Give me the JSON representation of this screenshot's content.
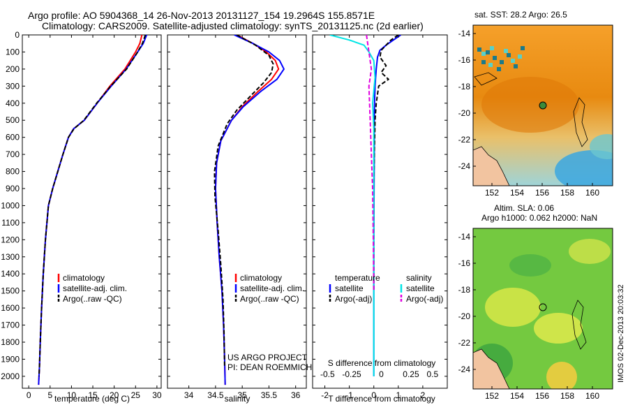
{
  "header": {
    "line1": "Argo profile: AO 5904368_14 26-Nov-2013 20131127_154 19.2964S 155.8571E",
    "line2": "Climatology: CARS2009. Satellite-adjusted climatology: synTS_20131125.nc (2d earlier)"
  },
  "colors": {
    "climatology": "#ff0000",
    "satellite": "#0000ff",
    "argo": "#000000",
    "sat_salinity": "#00e5e5",
    "argo_salinity": "#e000e0"
  },
  "depth_axis": {
    "ticks": [
      "0",
      "100",
      "200",
      "300",
      "400",
      "500",
      "600",
      "700",
      "800",
      "900",
      "1000",
      "1100",
      "1200",
      "1300",
      "1400",
      "1500",
      "1600",
      "1700",
      "1800",
      "1900",
      "2000"
    ],
    "ylim": [
      0,
      2070
    ]
  },
  "chart_data": [
    {
      "type": "line",
      "xlabel": "temperature (deg C)",
      "xlim": [
        -1.5,
        31
      ],
      "xticks": [
        "0",
        "5",
        "10",
        "15",
        "20",
        "25",
        "30"
      ],
      "legend": [
        "climatology",
        "satellite-adj. clim.",
        "Argo(..raw -QC)"
      ],
      "series": [
        {
          "name": "climatology",
          "x": [
            26.5,
            26.0,
            25.0,
            22.5,
            19.0,
            16.0,
            13.0,
            10.5,
            9.3,
            8.0,
            6.8,
            5.6,
            4.6,
            3.9,
            3.4,
            3.0,
            2.7,
            2.5,
            2.4,
            2.3
          ],
          "y": [
            0,
            50,
            100,
            200,
            300,
            400,
            500,
            550,
            600,
            700,
            800,
            900,
            1000,
            1200,
            1400,
            1600,
            1800,
            1950,
            2000,
            2050
          ]
        },
        {
          "name": "satellite-adj. clim.",
          "x": [
            27.6,
            26.8,
            25.5,
            22.8,
            19.3,
            16.0,
            13.0,
            10.5,
            9.3,
            8.0,
            6.8,
            5.6,
            4.6,
            3.9,
            3.4,
            3.0,
            2.7,
            2.5,
            2.4,
            2.3
          ],
          "y": [
            0,
            50,
            100,
            200,
            300,
            400,
            500,
            550,
            600,
            700,
            800,
            900,
            1000,
            1200,
            1400,
            1600,
            1800,
            1950,
            2000,
            2050
          ]
        },
        {
          "name": "Argo(..raw -QC)",
          "x": [
            27.3,
            26.6,
            25.5,
            22.9,
            19.2,
            15.9,
            12.9,
            10.6,
            9.3,
            8.0,
            6.8,
            5.6,
            4.6,
            3.9,
            3.4,
            3.0,
            2.7,
            2.5,
            2.4
          ],
          "y": [
            0,
            50,
            100,
            200,
            300,
            400,
            500,
            550,
            600,
            700,
            800,
            900,
            1000,
            1200,
            1400,
            1600,
            1800,
            1950,
            2000
          ]
        }
      ]
    },
    {
      "type": "line",
      "xlabel": "salinity",
      "xlim": [
        33.6,
        36.2
      ],
      "xticks": [
        "34",
        "34.5",
        "35",
        "35.5",
        "36"
      ],
      "legend": [
        "climatology",
        "satellite-adj. clim.",
        "Argo(..raw -QC)"
      ],
      "annotation": [
        "US ARGO PROJECT",
        "PI: DEAN ROEMMICH"
      ],
      "series": [
        {
          "name": "climatology",
          "x": [
            34.9,
            35.2,
            35.45,
            35.62,
            35.68,
            35.55,
            35.3,
            35.0,
            34.8,
            34.6,
            34.52,
            34.5,
            34.53,
            34.57,
            34.62,
            34.65,
            34.67,
            34.68
          ],
          "y": [
            0,
            50,
            100,
            150,
            200,
            260,
            330,
            420,
            500,
            620,
            750,
            900,
            1100,
            1300,
            1500,
            1700,
            1900,
            2050
          ]
        },
        {
          "name": "satellite-adj. clim.",
          "x": [
            34.85,
            35.2,
            35.5,
            35.7,
            35.78,
            35.65,
            35.35,
            35.02,
            34.8,
            34.6,
            34.52,
            34.5,
            34.53,
            34.57,
            34.62,
            34.65,
            34.67,
            34.68
          ],
          "y": [
            0,
            50,
            100,
            150,
            200,
            260,
            330,
            420,
            500,
            620,
            750,
            900,
            1100,
            1300,
            1500,
            1700,
            1900,
            2050
          ]
        },
        {
          "name": "Argo(..raw -QC)",
          "x": [
            34.9,
            35.25,
            35.5,
            35.58,
            35.55,
            35.4,
            35.18,
            34.9,
            34.72,
            34.55,
            34.48,
            34.49,
            34.55,
            34.6,
            34.64,
            34.66,
            34.67
          ],
          "y": [
            0,
            60,
            120,
            170,
            220,
            280,
            350,
            440,
            520,
            650,
            800,
            950,
            1150,
            1350,
            1550,
            1750,
            1950
          ]
        }
      ]
    },
    {
      "type": "line",
      "xlabel": "T difference from climatology",
      "xlabel_top": "S difference from climatology",
      "xlim": [
        -2.5,
        3
      ],
      "xticks": [
        "-2",
        "-1",
        "0",
        "1",
        "2"
      ],
      "xticks_top": [
        "-0.5",
        "-0.25",
        "0",
        "0.25",
        "0.5"
      ],
      "legend": [
        "temperature",
        "satellite",
        "Argo(-adj)",
        "salinity",
        "satellite",
        "Argo(-adj)"
      ],
      "series": [
        {
          "name": "satellite",
          "x": [
            1.1,
            0.8,
            0.5,
            0.25,
            0.15,
            0.1,
            0.05,
            0.03,
            0.02,
            0.02,
            0.01,
            0.0,
            0.0,
            0.0,
            0.0
          ],
          "y": [
            0,
            30,
            60,
            90,
            130,
            200,
            300,
            400,
            500,
            700,
            900,
            1200,
            1500,
            1800,
            2000
          ]
        },
        {
          "name": "Argo(-adj)",
          "x": [
            1.0,
            0.7,
            0.5,
            0.3,
            0.25,
            0.5,
            0.3,
            0.6,
            0.2,
            0.1,
            0.05,
            0.02,
            0.0,
            0.0,
            0.0
          ],
          "y": [
            0,
            30,
            60,
            90,
            130,
            180,
            220,
            260,
            300,
            400,
            500,
            700,
            900,
            1200,
            1500
          ]
        },
        {
          "name": "satellite",
          "x": [
            -1.8,
            -1.0,
            -0.4,
            -0.2,
            0.0,
            0.05,
            -0.05,
            0.0,
            0.0,
            0.0,
            0.0,
            0.0
          ],
          "y": [
            0,
            30,
            60,
            100,
            150,
            250,
            400,
            550,
            700,
            1000,
            1500,
            2000
          ]
        },
        {
          "name": "Argo(-adj)",
          "x": [
            -0.3,
            -0.2,
            -0.1,
            -0.15,
            -0.2,
            -0.15,
            -0.1,
            -0.05,
            -0.02,
            0.0
          ],
          "y": [
            0,
            100,
            200,
            250,
            300,
            500,
            700,
            900,
            1200,
            1500
          ]
        }
      ]
    },
    {
      "type": "heatmap",
      "title": "sat. SST: 28.2 Argo: 26.5",
      "xticks": [
        "152",
        "154",
        "156",
        "158",
        "160"
      ],
      "yticks": [
        "-14",
        "-16",
        "-18",
        "-20",
        "-22",
        "-24"
      ]
    },
    {
      "type": "heatmap",
      "title": "Altim. SLA: 0.06",
      "subtitle": "Argo h1000: 0.062 h2000: NaN",
      "xticks": [
        "152",
        "154",
        "156",
        "158",
        "160"
      ],
      "yticks": [
        "-14",
        "-16",
        "-18",
        "-20",
        "-22",
        "-24"
      ]
    }
  ],
  "footer": {
    "stamp": "IMOS 02-Dec-2013 20:03:32"
  }
}
